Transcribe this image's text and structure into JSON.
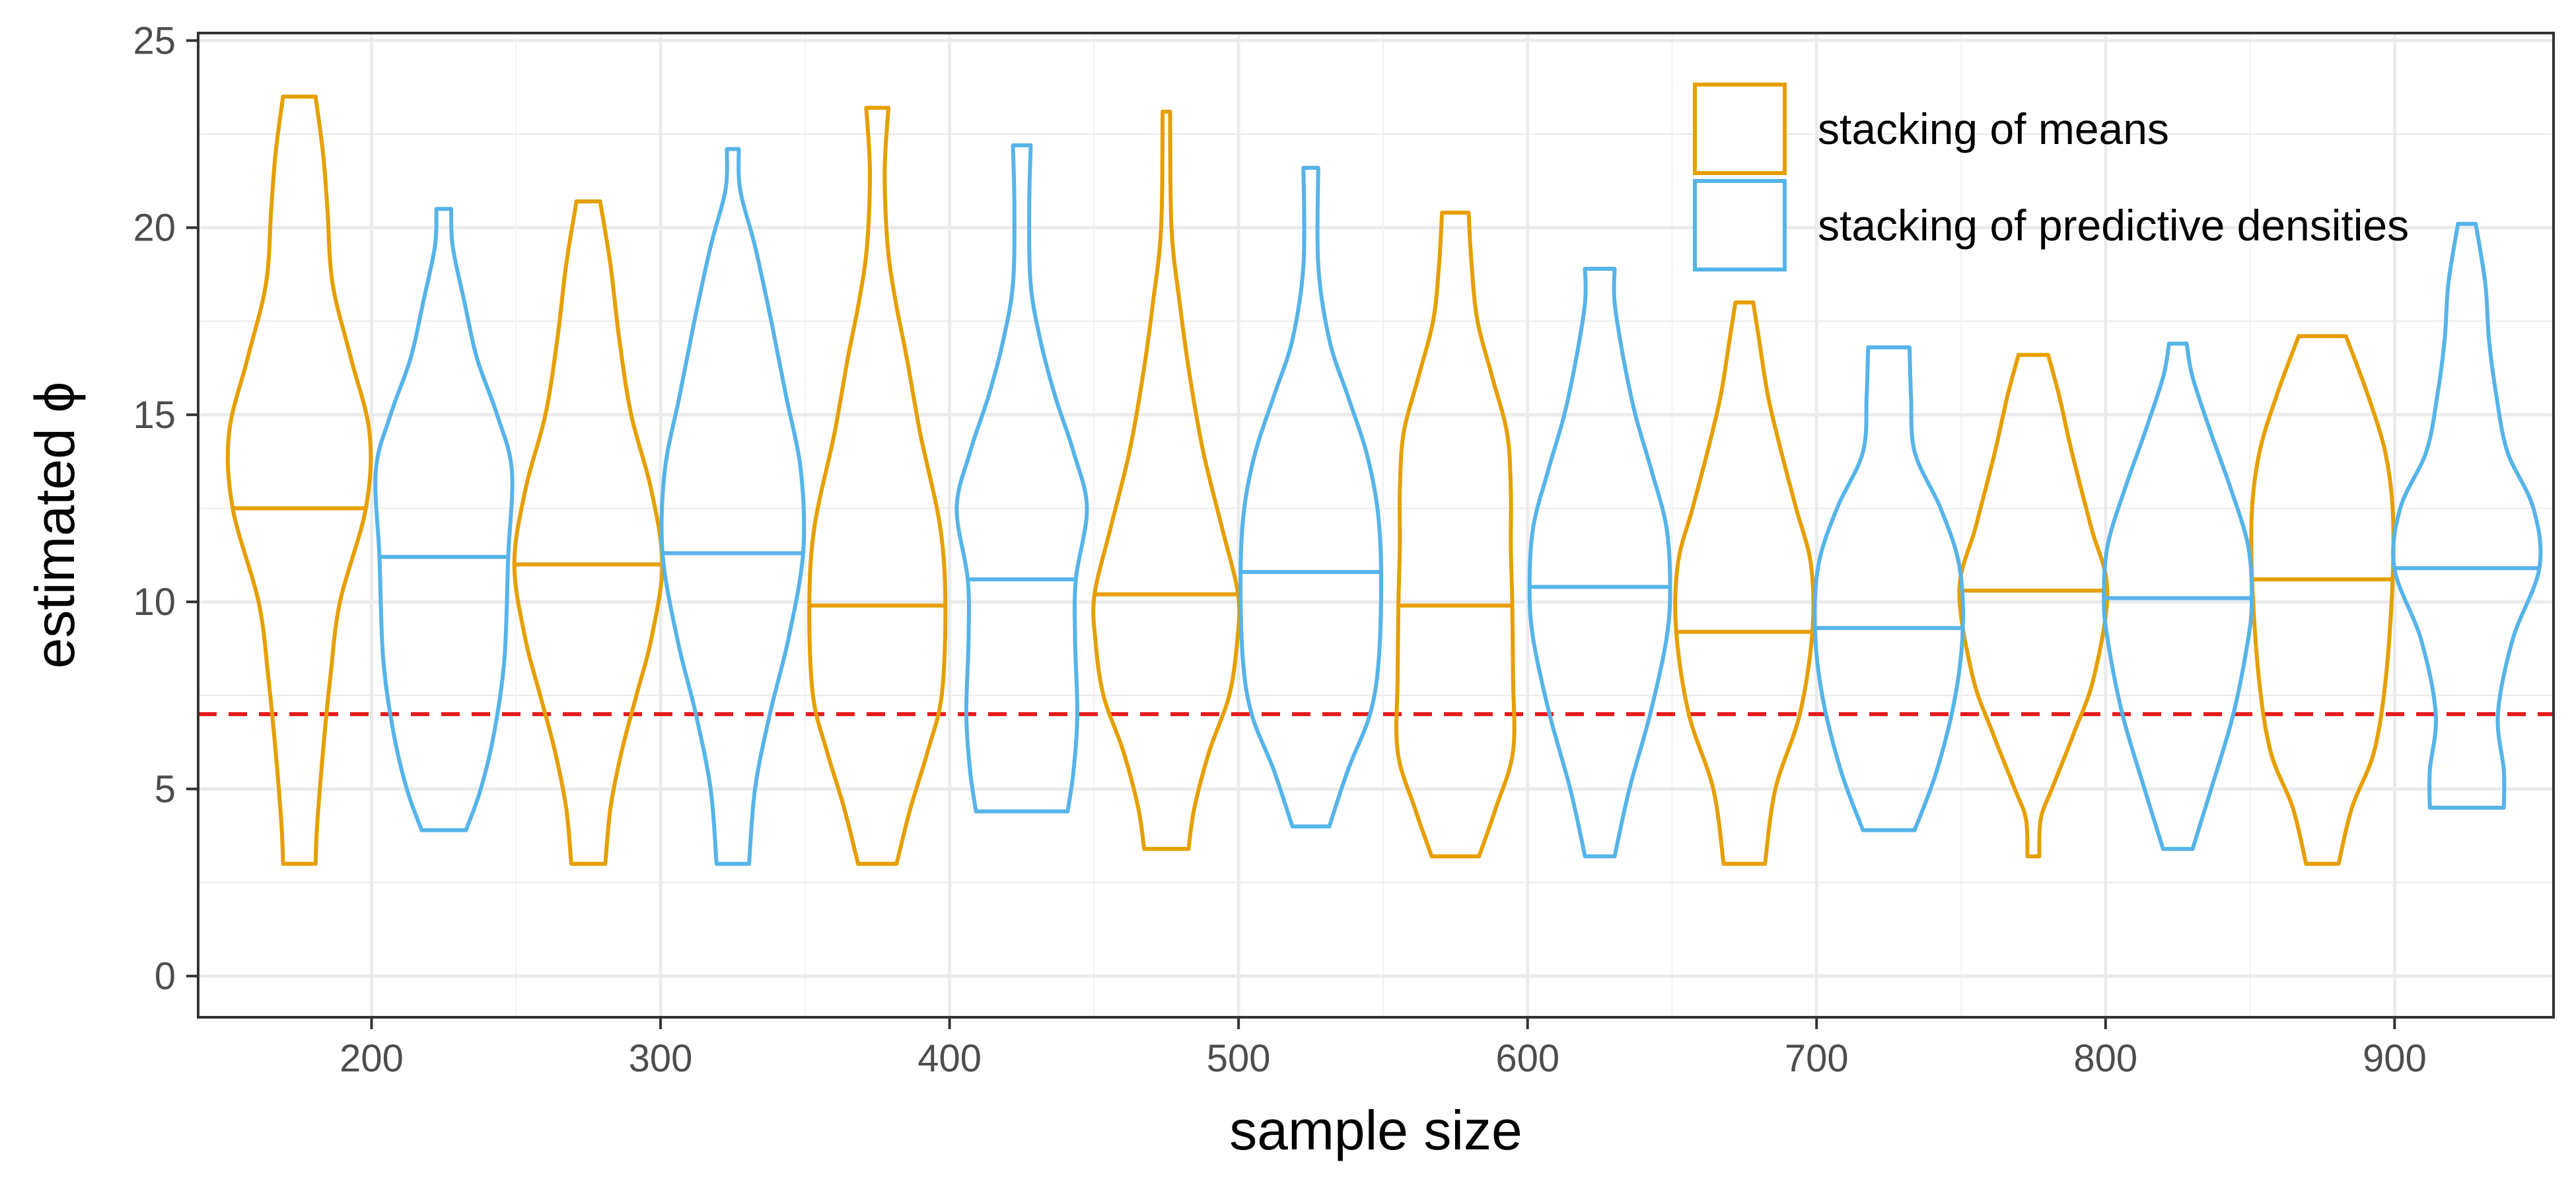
{
  "chart_data": {
    "type": "violin",
    "title": "",
    "xlabel": "sample size",
    "ylabel": "estimated ϕ",
    "xlim": [
      140,
      955
    ],
    "ylim": [
      -1.1,
      25.2
    ],
    "x_ticks": [
      200,
      300,
      400,
      500,
      600,
      700,
      800,
      900
    ],
    "y_ticks": [
      0,
      5,
      10,
      15,
      20,
      25
    ],
    "grid": true,
    "legend_position": "top-right",
    "reference_line": {
      "y": 7,
      "color": "#e41a1c",
      "style": "dashed"
    },
    "series": [
      {
        "name": "stacking of means",
        "color": "#e69f00",
        "offset": -25,
        "violins": [
          {
            "n": 200,
            "min": 3.0,
            "max": 23.5,
            "median": 12.5,
            "profile": [
              [
                3.0,
                0.22
              ],
              [
                4.0,
                0.24
              ],
              [
                6.0,
                0.32
              ],
              [
                8.0,
                0.42
              ],
              [
                10.0,
                0.55
              ],
              [
                12.5,
                0.9
              ],
              [
                14.5,
                0.95
              ],
              [
                16.5,
                0.7
              ],
              [
                18.5,
                0.45
              ],
              [
                20.5,
                0.38
              ],
              [
                22.0,
                0.32
              ],
              [
                23.5,
                0.22
              ]
            ]
          },
          {
            "n": 300,
            "min": 3.0,
            "max": 20.7,
            "median": 11.0,
            "profile": [
              [
                3.0,
                0.23
              ],
              [
                4.5,
                0.3
              ],
              [
                6.0,
                0.45
              ],
              [
                7.5,
                0.65
              ],
              [
                9.0,
                0.85
              ],
              [
                11.0,
                1.0
              ],
              [
                13.0,
                0.85
              ],
              [
                15.0,
                0.58
              ],
              [
                17.0,
                0.42
              ],
              [
                19.0,
                0.3
              ],
              [
                20.7,
                0.16
              ]
            ]
          },
          {
            "n": 400,
            "min": 3.0,
            "max": 23.2,
            "median": 9.9,
            "profile": [
              [
                3.0,
                0.26
              ],
              [
                4.5,
                0.45
              ],
              [
                6.0,
                0.68
              ],
              [
                7.5,
                0.87
              ],
              [
                9.9,
                0.92
              ],
              [
                12.0,
                0.85
              ],
              [
                14.5,
                0.58
              ],
              [
                16.5,
                0.4
              ],
              [
                18.0,
                0.25
              ],
              [
                19.5,
                0.14
              ],
              [
                21.5,
                0.1
              ],
              [
                23.2,
                0.15
              ]
            ]
          },
          {
            "n": 500,
            "min": 3.4,
            "max": 23.1,
            "median": 10.2,
            "profile": [
              [
                3.4,
                0.3
              ],
              [
                4.5,
                0.38
              ],
              [
                6.0,
                0.58
              ],
              [
                7.5,
                0.85
              ],
              [
                9.0,
                0.96
              ],
              [
                10.2,
                0.97
              ],
              [
                12.0,
                0.75
              ],
              [
                14.0,
                0.5
              ],
              [
                16.0,
                0.32
              ],
              [
                18.0,
                0.18
              ],
              [
                20.0,
                0.07
              ],
              [
                23.1,
                0.05
              ]
            ]
          },
          {
            "n": 600,
            "min": 3.2,
            "max": 20.4,
            "median": 9.9,
            "profile": [
              [
                3.2,
                0.32
              ],
              [
                4.5,
                0.55
              ],
              [
                6.0,
                0.78
              ],
              [
                8.0,
                0.78
              ],
              [
                9.9,
                0.77
              ],
              [
                11.5,
                0.75
              ],
              [
                13.0,
                0.75
              ],
              [
                14.5,
                0.7
              ],
              [
                16.0,
                0.5
              ],
              [
                17.5,
                0.3
              ],
              [
                19.0,
                0.22
              ],
              [
                20.4,
                0.18
              ]
            ]
          },
          {
            "n": 700,
            "min": 3.0,
            "max": 18.0,
            "median": 9.2,
            "profile": [
              [
                3.0,
                0.28
              ],
              [
                5.0,
                0.42
              ],
              [
                7.0,
                0.75
              ],
              [
                9.2,
                0.92
              ],
              [
                11.0,
                0.9
              ],
              [
                12.5,
                0.7
              ],
              [
                14.0,
                0.5
              ],
              [
                15.5,
                0.32
              ],
              [
                17.0,
                0.2
              ],
              [
                18.0,
                0.12
              ]
            ]
          },
          {
            "n": 800,
            "min": 3.2,
            "max": 16.6,
            "median": 10.3,
            "profile": [
              [
                3.2,
                0.08
              ],
              [
                4.2,
                0.1
              ],
              [
                5.0,
                0.25
              ],
              [
                6.5,
                0.55
              ],
              [
                8.0,
                0.82
              ],
              [
                10.3,
                1.0
              ],
              [
                12.0,
                0.78
              ],
              [
                14.0,
                0.52
              ],
              [
                15.5,
                0.35
              ],
              [
                16.6,
                0.2
              ]
            ]
          },
          {
            "n": 900,
            "min": 3.0,
            "max": 17.1,
            "median": 10.6,
            "profile": [
              [
                3.0,
                0.22
              ],
              [
                4.5,
                0.4
              ],
              [
                6.0,
                0.7
              ],
              [
                8.0,
                0.86
              ],
              [
                10.6,
                0.95
              ],
              [
                12.5,
                0.95
              ],
              [
                14.0,
                0.85
              ],
              [
                15.5,
                0.62
              ],
              [
                17.1,
                0.32
              ]
            ]
          }
        ]
      },
      {
        "name": "stacking of predictive densities",
        "color": "#56b4e9",
        "offset": 25,
        "violins": [
          {
            "n": 200,
            "min": 3.9,
            "max": 20.5,
            "median": 11.2,
            "profile": [
              [
                3.9,
                0.3
              ],
              [
                5.0,
                0.5
              ],
              [
                6.5,
                0.68
              ],
              [
                8.5,
                0.82
              ],
              [
                11.2,
                0.87
              ],
              [
                13.5,
                0.92
              ],
              [
                15.0,
                0.72
              ],
              [
                16.5,
                0.45
              ],
              [
                18.0,
                0.28
              ],
              [
                19.5,
                0.12
              ],
              [
                20.5,
                0.1
              ]
            ]
          },
          {
            "n": 300,
            "min": 3.0,
            "max": 22.1,
            "median": 11.3,
            "profile": [
              [
                3.0,
                0.22
              ],
              [
                5.0,
                0.3
              ],
              [
                7.0,
                0.5
              ],
              [
                9.0,
                0.75
              ],
              [
                11.3,
                0.95
              ],
              [
                13.5,
                0.92
              ],
              [
                15.5,
                0.72
              ],
              [
                17.5,
                0.52
              ],
              [
                19.5,
                0.3
              ],
              [
                21.0,
                0.1
              ],
              [
                22.1,
                0.08
              ]
            ]
          },
          {
            "n": 400,
            "min": 4.4,
            "max": 22.2,
            "median": 10.6,
            "profile": [
              [
                4.4,
                0.62
              ],
              [
                5.5,
                0.7
              ],
              [
                7.0,
                0.75
              ],
              [
                9.0,
                0.72
              ],
              [
                10.6,
                0.73
              ],
              [
                12.5,
                0.88
              ],
              [
                14.0,
                0.7
              ],
              [
                15.5,
                0.45
              ],
              [
                17.0,
                0.25
              ],
              [
                18.5,
                0.12
              ],
              [
                20.5,
                0.1
              ],
              [
                22.2,
                0.12
              ]
            ]
          },
          {
            "n": 500,
            "min": 4.0,
            "max": 21.6,
            "median": 10.8,
            "profile": [
              [
                4.0,
                0.25
              ],
              [
                5.5,
                0.5
              ],
              [
                7.0,
                0.8
              ],
              [
                8.5,
                0.92
              ],
              [
                10.8,
                0.95
              ],
              [
                12.5,
                0.9
              ],
              [
                14.0,
                0.75
              ],
              [
                15.5,
                0.5
              ],
              [
                17.0,
                0.25
              ],
              [
                19.0,
                0.1
              ],
              [
                21.6,
                0.1
              ]
            ]
          },
          {
            "n": 600,
            "min": 3.2,
            "max": 18.9,
            "median": 10.4,
            "profile": [
              [
                3.2,
                0.2
              ],
              [
                5.0,
                0.4
              ],
              [
                7.0,
                0.68
              ],
              [
                9.0,
                0.9
              ],
              [
                10.4,
                0.95
              ],
              [
                12.0,
                0.9
              ],
              [
                13.5,
                0.7
              ],
              [
                15.0,
                0.48
              ],
              [
                16.5,
                0.32
              ],
              [
                18.0,
                0.2
              ],
              [
                18.9,
                0.2
              ]
            ]
          },
          {
            "n": 700,
            "min": 3.9,
            "max": 16.8,
            "median": 9.3,
            "profile": [
              [
                3.9,
                0.35
              ],
              [
                5.5,
                0.65
              ],
              [
                7.5,
                0.9
              ],
              [
                9.3,
                1.0
              ],
              [
                11.0,
                0.95
              ],
              [
                12.5,
                0.7
              ],
              [
                14.0,
                0.35
              ],
              [
                15.5,
                0.3
              ],
              [
                16.8,
                0.28
              ]
            ]
          },
          {
            "n": 800,
            "min": 3.4,
            "max": 16.9,
            "median": 10.1,
            "profile": [
              [
                3.4,
                0.2
              ],
              [
                5.0,
                0.45
              ],
              [
                7.0,
                0.75
              ],
              [
                9.0,
                0.95
              ],
              [
                10.1,
                1.0
              ],
              [
                11.5,
                0.95
              ],
              [
                13.0,
                0.72
              ],
              [
                14.5,
                0.45
              ],
              [
                16.0,
                0.2
              ],
              [
                16.9,
                0.12
              ]
            ]
          },
          {
            "n": 900,
            "min": 4.5,
            "max": 20.1,
            "median": 10.9,
            "profile": [
              [
                4.5,
                0.5
              ],
              [
                5.5,
                0.5
              ],
              [
                7.0,
                0.42
              ],
              [
                9.0,
                0.62
              ],
              [
                10.9,
                0.98
              ],
              [
                12.5,
                0.9
              ],
              [
                14.0,
                0.55
              ],
              [
                15.5,
                0.4
              ],
              [
                17.0,
                0.3
              ],
              [
                18.5,
                0.25
              ],
              [
                20.1,
                0.12
              ]
            ]
          }
        ]
      }
    ]
  }
}
